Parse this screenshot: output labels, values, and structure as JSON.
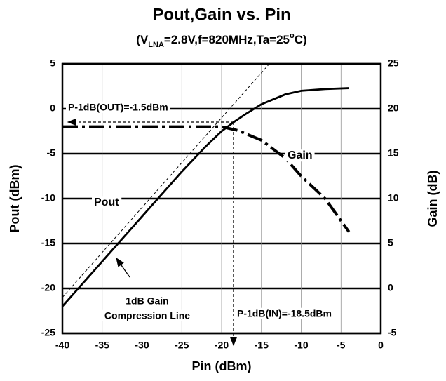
{
  "chart_data": {
    "type": "line",
    "title": "Pout,Gain vs. Pin",
    "subtitle": [
      "(V",
      "LNA",
      "=2.8V,f=820MHz,Ta=25",
      "o",
      "C)"
    ],
    "xlabel": "Pin (dBm)",
    "ylabel": "Pout (dBm)",
    "y2label": "Gain (dB)",
    "xlim": [
      -40,
      0
    ],
    "xticks": [
      -40,
      -35,
      -30,
      -25,
      -20,
      -15,
      -10,
      -5,
      0
    ],
    "ylim": [
      -25,
      5
    ],
    "yticks": [
      -25,
      -20,
      -15,
      -10,
      -5,
      0,
      5
    ],
    "y2lim": [
      -5,
      25
    ],
    "y2ticks": [
      -5,
      0,
      5,
      10,
      15,
      20,
      25
    ],
    "grid": true,
    "series": [
      {
        "name": "Pout",
        "color": "#000000",
        "x": [
          -40,
          -35,
          -30,
          -25,
          -22,
          -20,
          -18.5,
          -17,
          -15,
          -12,
          -10,
          -7,
          -4
        ],
        "values": [
          -22,
          -17,
          -12,
          -7,
          -4.2,
          -2.5,
          -1.5,
          -0.6,
          0.5,
          1.6,
          2.0,
          2.2,
          2.3
        ]
      },
      {
        "name": "Gain",
        "color": "#000000",
        "axis": "y2",
        "x": [
          -40,
          -35,
          -30,
          -25,
          -22,
          -20,
          -18,
          -15,
          -12,
          -10,
          -7,
          -4
        ],
        "values": [
          18,
          18,
          18,
          18,
          18,
          18,
          17.6,
          16.5,
          14.5,
          12.5,
          10,
          6.3
        ]
      },
      {
        "color": "#000000",
        "x": [
          -40,
          -14
        ],
        "values": [
          -21,
          5
        ]
      }
    ],
    "annotations": [
      "P-1dB(OUT)=-1.5dBm",
      "P-1dB(IN)=-18.5dBm",
      "1dB Gain",
      "Compression Line"
    ]
  }
}
